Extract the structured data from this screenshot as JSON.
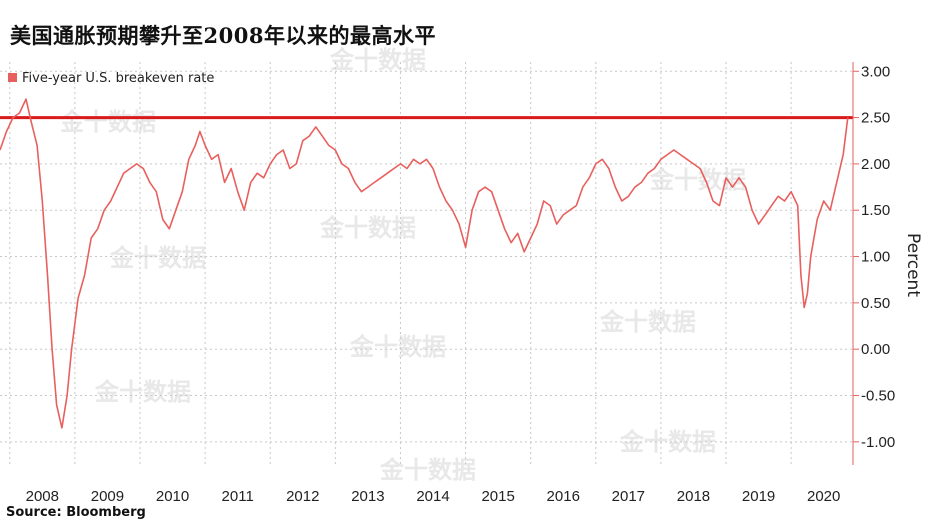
{
  "title": "美国通胀预期攀升至2008年以来的最高水平",
  "source": "Source: Bloomberg",
  "watermark": "金十数据",
  "chart_data": {
    "type": "line",
    "ylabel": "Percent",
    "ylim": [
      -1.25,
      3.1
    ],
    "yticks": [
      "3.00",
      "2.50",
      "2.00",
      "1.50",
      "1.00",
      "0.50",
      "0.00",
      "-0.50",
      "-1.00"
    ],
    "xlim": [
      2007.85,
      2020.95
    ],
    "xticks": [
      "2008",
      "2009",
      "2010",
      "2011",
      "2012",
      "2013",
      "2014",
      "2015",
      "2016",
      "2017",
      "2018",
      "2019",
      "2020"
    ],
    "grid": true,
    "legend_position": "top-left",
    "colors": {
      "series": "#e8605e",
      "reference": "#d91a1a",
      "axis": "#e36262",
      "grid": "#c8c8c8"
    },
    "reference_line": {
      "y": 2.5
    },
    "series": [
      {
        "name": "Five-year U.S. breakeven rate",
        "x": [
          2007.85,
          2007.95,
          2008.05,
          2008.15,
          2008.25,
          2008.33,
          2008.42,
          2008.5,
          2008.58,
          2008.65,
          2008.72,
          2008.8,
          2008.88,
          2008.95,
          2009.05,
          2009.15,
          2009.25,
          2009.35,
          2009.45,
          2009.55,
          2009.65,
          2009.75,
          2009.85,
          2009.95,
          2010.05,
          2010.15,
          2010.25,
          2010.35,
          2010.45,
          2010.55,
          2010.65,
          2010.75,
          2010.85,
          2010.92,
          2011.0,
          2011.1,
          2011.2,
          2011.3,
          2011.4,
          2011.5,
          2011.6,
          2011.7,
          2011.8,
          2011.9,
          2012.0,
          2012.1,
          2012.2,
          2012.3,
          2012.4,
          2012.5,
          2012.6,
          2012.7,
          2012.8,
          2012.9,
          2013.0,
          2013.1,
          2013.2,
          2013.3,
          2013.4,
          2013.5,
          2013.6,
          2013.7,
          2013.8,
          2013.9,
          2014.0,
          2014.1,
          2014.2,
          2014.3,
          2014.4,
          2014.5,
          2014.6,
          2014.7,
          2014.8,
          2014.9,
          2015.0,
          2015.1,
          2015.2,
          2015.3,
          2015.4,
          2015.5,
          2015.6,
          2015.7,
          2015.8,
          2015.9,
          2016.0,
          2016.1,
          2016.2,
          2016.3,
          2016.4,
          2016.5,
          2016.6,
          2016.7,
          2016.8,
          2016.9,
          2017.0,
          2017.1,
          2017.2,
          2017.3,
          2017.4,
          2017.5,
          2017.6,
          2017.7,
          2017.8,
          2017.9,
          2018.0,
          2018.1,
          2018.2,
          2018.3,
          2018.4,
          2018.5,
          2018.6,
          2018.7,
          2018.8,
          2018.9,
          2019.0,
          2019.1,
          2019.2,
          2019.3,
          2019.4,
          2019.5,
          2019.6,
          2019.7,
          2019.8,
          2019.9,
          2020.0,
          2020.1,
          2020.15,
          2020.2,
          2020.25,
          2020.3,
          2020.4,
          2020.5,
          2020.6,
          2020.7,
          2020.8,
          2020.87
        ],
        "y": [
          2.15,
          2.35,
          2.5,
          2.55,
          2.7,
          2.45,
          2.2,
          1.6,
          0.8,
          0.0,
          -0.6,
          -0.85,
          -0.5,
          0.0,
          0.55,
          0.8,
          1.2,
          1.3,
          1.5,
          1.6,
          1.75,
          1.9,
          1.95,
          2.0,
          1.95,
          1.8,
          1.7,
          1.4,
          1.3,
          1.5,
          1.7,
          2.05,
          2.2,
          2.35,
          2.2,
          2.05,
          2.1,
          1.8,
          1.95,
          1.7,
          1.5,
          1.8,
          1.9,
          1.85,
          2.0,
          2.1,
          2.15,
          1.95,
          2.0,
          2.25,
          2.3,
          2.4,
          2.3,
          2.2,
          2.15,
          2.0,
          1.95,
          1.8,
          1.7,
          1.75,
          1.8,
          1.85,
          1.9,
          1.95,
          2.0,
          1.95,
          2.05,
          2.0,
          2.05,
          1.95,
          1.75,
          1.6,
          1.5,
          1.35,
          1.1,
          1.5,
          1.7,
          1.75,
          1.7,
          1.5,
          1.3,
          1.15,
          1.25,
          1.05,
          1.2,
          1.35,
          1.6,
          1.55,
          1.35,
          1.45,
          1.5,
          1.55,
          1.75,
          1.85,
          2.0,
          2.05,
          1.95,
          1.75,
          1.6,
          1.65,
          1.75,
          1.8,
          1.9,
          1.95,
          2.05,
          2.1,
          2.15,
          2.1,
          2.05,
          2.0,
          1.95,
          1.8,
          1.6,
          1.55,
          1.85,
          1.75,
          1.85,
          1.75,
          1.5,
          1.35,
          1.45,
          1.55,
          1.65,
          1.6,
          1.7,
          1.55,
          0.8,
          0.45,
          0.6,
          1.0,
          1.4,
          1.6,
          1.5,
          1.8,
          2.1,
          2.5
        ]
      }
    ]
  }
}
